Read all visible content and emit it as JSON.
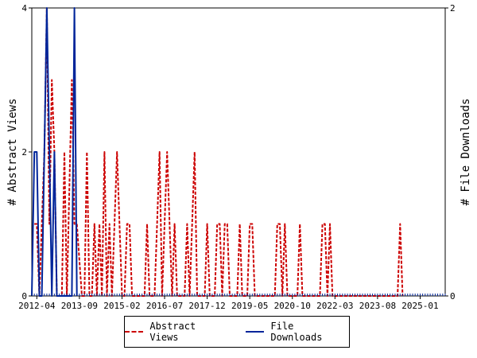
{
  "chart_data": {
    "type": "line",
    "x_ticks": [
      "2012-04",
      "2013-09",
      "2015-02",
      "2016-07",
      "2017-12",
      "2019-05",
      "2020-10",
      "2022-03",
      "2023-08",
      "2025-01"
    ],
    "x_range": [
      "2012-02",
      "2025-11"
    ],
    "y_left": {
      "label": "# Abstract Views",
      "ticks": [
        "0",
        "2",
        "4"
      ],
      "ylim": [
        0,
        4
      ]
    },
    "y_right": {
      "label": "# File Downloads",
      "ticks": [
        "0",
        "2"
      ],
      "ylim": [
        0,
        2
      ]
    },
    "grid": false,
    "legend_position": "bottom",
    "series": [
      {
        "name": "Abstract Views",
        "axis": "left",
        "color": "#cc0000",
        "style": "dashed",
        "points": [
          [
            "2012-03",
            1
          ],
          [
            "2012-04",
            1
          ],
          [
            "2012-05",
            0
          ],
          [
            "2012-06",
            1
          ],
          [
            "2012-07",
            2
          ],
          [
            "2012-08",
            4
          ],
          [
            "2012-09",
            1
          ],
          [
            "2012-10",
            3
          ],
          [
            "2012-11",
            2
          ],
          [
            "2012-12",
            0
          ],
          [
            "2013-02",
            0
          ],
          [
            "2013-03",
            2
          ],
          [
            "2013-04",
            0
          ],
          [
            "2013-06",
            3
          ],
          [
            "2013-07",
            1
          ],
          [
            "2013-08",
            1
          ],
          [
            "2013-10",
            0
          ],
          [
            "2013-11",
            0
          ],
          [
            "2013-12",
            2
          ],
          [
            "2014-01",
            0
          ],
          [
            "2014-02",
            0
          ],
          [
            "2014-03",
            1
          ],
          [
            "2014-04",
            0
          ],
          [
            "2014-05",
            1
          ],
          [
            "2014-06",
            0
          ],
          [
            "2014-07",
            2
          ],
          [
            "2014-08",
            0
          ],
          [
            "2014-09",
            1
          ],
          [
            "2014-10",
            0
          ],
          [
            "2014-11",
            1
          ],
          [
            "2014-12",
            2
          ],
          [
            "2015-01",
            1
          ],
          [
            "2015-02",
            0
          ],
          [
            "2015-03",
            0
          ],
          [
            "2015-04",
            1
          ],
          [
            "2015-05",
            1
          ],
          [
            "2015-06",
            0
          ],
          [
            "2015-11",
            0
          ],
          [
            "2015-12",
            1
          ],
          [
            "2016-01",
            0
          ],
          [
            "2016-03",
            0
          ],
          [
            "2016-04",
            1
          ],
          [
            "2016-05",
            2
          ],
          [
            "2016-06",
            0
          ],
          [
            "2016-07",
            1
          ],
          [
            "2016-08",
            2
          ],
          [
            "2016-09",
            1
          ],
          [
            "2016-10",
            0
          ],
          [
            "2016-11",
            1
          ],
          [
            "2016-12",
            0
          ],
          [
            "2017-03",
            0
          ],
          [
            "2017-04",
            1
          ],
          [
            "2017-05",
            0
          ],
          [
            "2017-06",
            1
          ],
          [
            "2017-07",
            2
          ],
          [
            "2017-08",
            0
          ],
          [
            "2017-11",
            0
          ],
          [
            "2017-12",
            1
          ],
          [
            "2018-01",
            0
          ],
          [
            "2018-03",
            0
          ],
          [
            "2018-04",
            1
          ],
          [
            "2018-05",
            1
          ],
          [
            "2018-06",
            0
          ],
          [
            "2018-07",
            1
          ],
          [
            "2018-08",
            1
          ],
          [
            "2018-09",
            0
          ],
          [
            "2018-12",
            0
          ],
          [
            "2019-01",
            1
          ],
          [
            "2019-02",
            0
          ],
          [
            "2019-04",
            0
          ],
          [
            "2019-05",
            1
          ],
          [
            "2019-06",
            1
          ],
          [
            "2019-07",
            0
          ],
          [
            "2020-03",
            0
          ],
          [
            "2020-04",
            1
          ],
          [
            "2020-05",
            1
          ],
          [
            "2020-06",
            0
          ],
          [
            "2020-07",
            1
          ],
          [
            "2020-08",
            0
          ],
          [
            "2020-12",
            0
          ],
          [
            "2021-01",
            1
          ],
          [
            "2021-02",
            0
          ],
          [
            "2021-09",
            0
          ],
          [
            "2021-10",
            1
          ],
          [
            "2021-11",
            1
          ],
          [
            "2021-12",
            0
          ],
          [
            "2022-01",
            1
          ],
          [
            "2022-02",
            0
          ],
          [
            "2024-04",
            0
          ],
          [
            "2024-05",
            1
          ],
          [
            "2024-06",
            0
          ]
        ]
      },
      {
        "name": "File Downloads",
        "axis": "right",
        "color": "#00259a",
        "style": "solid",
        "points": [
          [
            "2012-02",
            0
          ],
          [
            "2012-03",
            1
          ],
          [
            "2012-04",
            1
          ],
          [
            "2012-05",
            0
          ],
          [
            "2012-06",
            0
          ],
          [
            "2012-07",
            1
          ],
          [
            "2012-08",
            2
          ],
          [
            "2012-09",
            1
          ],
          [
            "2012-10",
            0
          ],
          [
            "2012-11",
            1
          ],
          [
            "2012-12",
            0
          ],
          [
            "2013-06",
            0
          ],
          [
            "2013-07",
            2
          ],
          [
            "2013-08",
            0
          ]
        ]
      }
    ]
  }
}
